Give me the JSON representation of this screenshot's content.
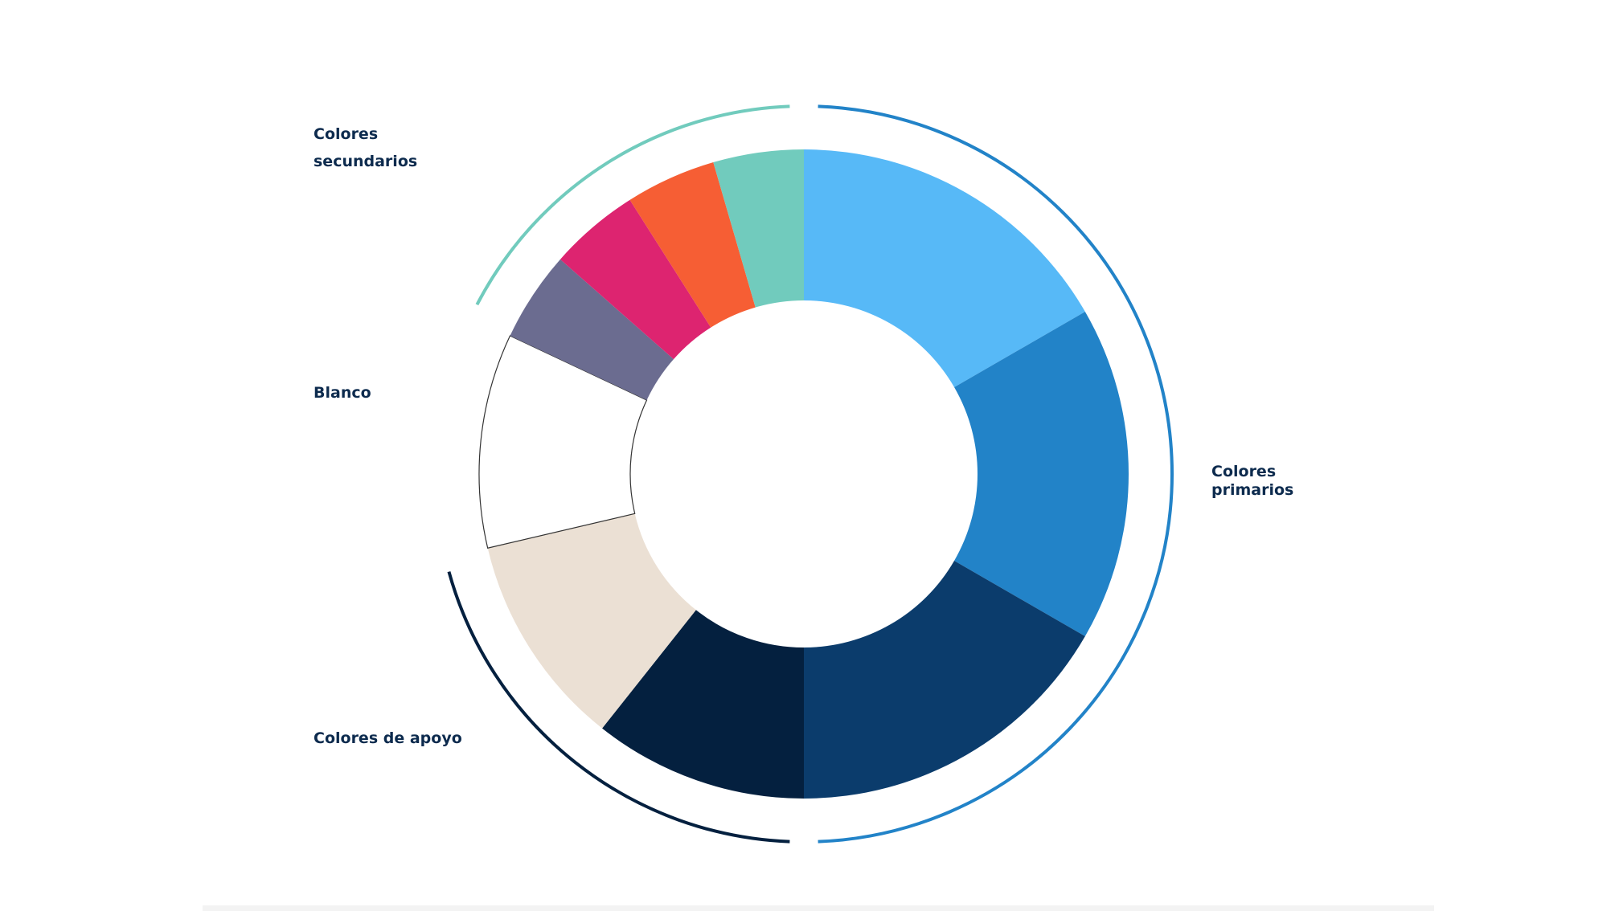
{
  "chart_data": {
    "type": "pie",
    "variant": "donut",
    "categories": [
      "Colores primarios",
      "Colores de apoyo",
      "Blanco",
      "Colores secundarios"
    ],
    "slices": [
      {
        "group": "Colores primarios",
        "value": 1,
        "color": "#57b9f7"
      },
      {
        "group": "Colores primarios",
        "value": 1,
        "color": "#2283c8"
      },
      {
        "group": "Colores primarios",
        "value": 1,
        "color": "#0b3c6c"
      },
      {
        "group": "Colores de apoyo",
        "value": 0.64,
        "color": "#04203f"
      },
      {
        "group": "Colores de apoyo",
        "value": 0.64,
        "color": "#ebe0d4"
      },
      {
        "group": "Blanco",
        "value": 0.64,
        "color": "#ffffff",
        "outline": "#333333"
      },
      {
        "group": "Colores secundarios",
        "value": 0.27,
        "color": "#6b6c90"
      },
      {
        "group": "Colores secundarios",
        "value": 0.27,
        "color": "#dd2470"
      },
      {
        "group": "Colores secundarios",
        "value": 0.27,
        "color": "#f65e34"
      },
      {
        "group": "Colores secundarios",
        "value": 0.27,
        "color": "#71cbbd"
      }
    ],
    "group_arcs": [
      {
        "group": "Colores primarios",
        "color": "#2283c8"
      },
      {
        "group": "Colores de apoyo",
        "color": "#04203f"
      },
      {
        "group": "Colores secundarios",
        "color": "#71cbbd"
      }
    ],
    "legend": "none"
  },
  "labels": {
    "secundarios": [
      "Colores",
      "secundarios"
    ],
    "blanco": "Blanco",
    "primarios": [
      "Colores",
      "primarios"
    ],
    "apoyo": "Colores de apoyo"
  }
}
